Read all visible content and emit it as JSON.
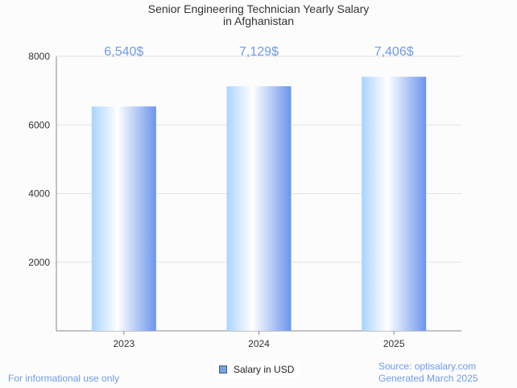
{
  "chart_data": {
    "type": "bar",
    "title": "Senior Engineering Technician Yearly Salary",
    "subtitle": "in Afghanistan",
    "categories": [
      "2023",
      "2024",
      "2025"
    ],
    "values": [
      6540,
      7129,
      7406
    ],
    "data_labels": [
      "6,540$",
      "7,129$",
      "7,406$"
    ],
    "yticks": [
      "2000",
      "4000",
      "6000",
      "8000"
    ],
    "ytick_values": [
      2000,
      4000,
      6000,
      8000
    ],
    "ylim": [
      0,
      8000
    ],
    "xlabel": "",
    "ylabel": "",
    "legend": {
      "label": "Salary in USD",
      "placement": "bottom"
    },
    "grid": true,
    "colors": {
      "label": "#6f9be8",
      "bar_start": "#a9d4ff",
      "bar_mid": "#ffffff",
      "bar_end": "#6b95ec"
    }
  },
  "footer": {
    "left": "For informational use only",
    "source": "Source: optisalary.com",
    "generated": "Generated March 2025"
  }
}
